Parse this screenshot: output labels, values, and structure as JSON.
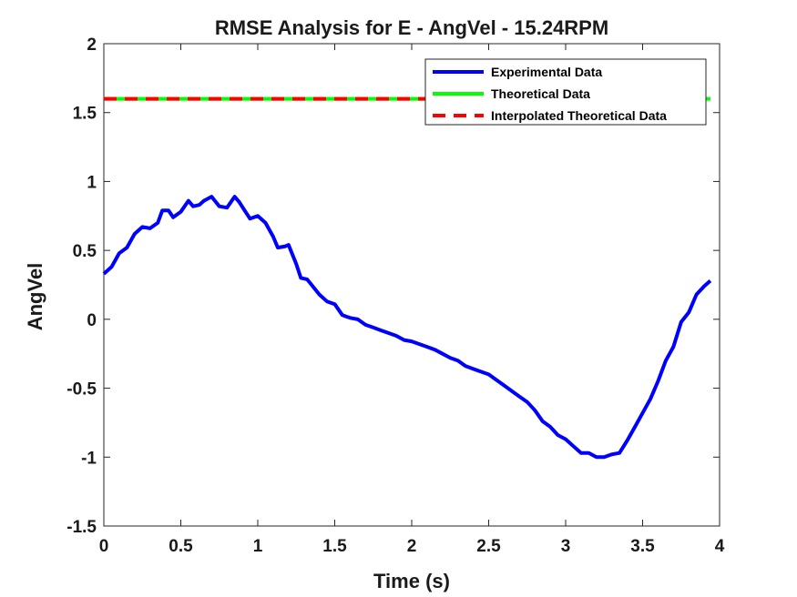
{
  "chart_data": {
    "type": "line",
    "title": "RMSE Analysis for E - AngVel - 15.24RPM",
    "xlabel": "Time (s)",
    "ylabel": "AngVel",
    "xlim": [
      0,
      4
    ],
    "ylim": [
      -1.5,
      2
    ],
    "xticks": [
      0,
      0.5,
      1,
      1.5,
      2,
      2.5,
      3,
      3.5,
      4
    ],
    "xtick_labels": [
      "0",
      "0.5",
      "1",
      "1.5",
      "2",
      "2.5",
      "3",
      "3.5",
      "4"
    ],
    "yticks": [
      -1.5,
      -1,
      -0.5,
      0,
      0.5,
      1,
      1.5,
      2
    ],
    "ytick_labels": [
      "-1.5",
      "-1",
      "-0.5",
      "0",
      "0.5",
      "1",
      "1.5",
      "2"
    ],
    "grid": false,
    "legend_position": "top-right",
    "series": [
      {
        "name": "Experimental Data",
        "color": "#0000ff",
        "style": "solid",
        "x": [
          0,
          0.05,
          0.1,
          0.15,
          0.2,
          0.25,
          0.3,
          0.35,
          0.38,
          0.42,
          0.45,
          0.5,
          0.55,
          0.58,
          0.62,
          0.65,
          0.7,
          0.75,
          0.8,
          0.85,
          0.88,
          0.92,
          0.95,
          1.0,
          1.05,
          1.1,
          1.13,
          1.18,
          1.2,
          1.25,
          1.28,
          1.32,
          1.35,
          1.4,
          1.45,
          1.5,
          1.55,
          1.6,
          1.65,
          1.7,
          1.75,
          1.8,
          1.85,
          1.9,
          1.95,
          2.0,
          2.05,
          2.1,
          2.15,
          2.2,
          2.25,
          2.3,
          2.35,
          2.4,
          2.45,
          2.5,
          2.55,
          2.6,
          2.65,
          2.7,
          2.75,
          2.8,
          2.85,
          2.9,
          2.95,
          3.0,
          3.05,
          3.1,
          3.15,
          3.2,
          3.25,
          3.3,
          3.35,
          3.4,
          3.45,
          3.5,
          3.55,
          3.6,
          3.65,
          3.7,
          3.75,
          3.8,
          3.85,
          3.9,
          3.94
        ],
        "y": [
          0.33,
          0.38,
          0.48,
          0.52,
          0.62,
          0.67,
          0.66,
          0.7,
          0.79,
          0.79,
          0.74,
          0.78,
          0.86,
          0.82,
          0.83,
          0.86,
          0.89,
          0.82,
          0.81,
          0.89,
          0.85,
          0.78,
          0.73,
          0.75,
          0.7,
          0.6,
          0.52,
          0.53,
          0.54,
          0.4,
          0.3,
          0.29,
          0.25,
          0.18,
          0.13,
          0.11,
          0.03,
          0.01,
          0.0,
          -0.04,
          -0.06,
          -0.08,
          -0.1,
          -0.12,
          -0.15,
          -0.16,
          -0.18,
          -0.2,
          -0.22,
          -0.25,
          -0.28,
          -0.3,
          -0.34,
          -0.36,
          -0.38,
          -0.4,
          -0.44,
          -0.48,
          -0.52,
          -0.56,
          -0.6,
          -0.66,
          -0.74,
          -0.78,
          -0.84,
          -0.87,
          -0.92,
          -0.97,
          -0.97,
          -1.0,
          -1.0,
          -0.98,
          -0.97,
          -0.88,
          -0.78,
          -0.68,
          -0.58,
          -0.45,
          -0.3,
          -0.2,
          -0.02,
          0.05,
          0.18,
          0.24,
          0.28
        ]
      },
      {
        "name": "Theoretical Data",
        "color": "#00ff00",
        "style": "solid",
        "x": [
          0,
          3.94
        ],
        "y": [
          1.6,
          1.6
        ]
      },
      {
        "name": "Interpolated Theoretical Data",
        "color": "#ff0000",
        "style": "dashed",
        "x": [
          0,
          3.94
        ],
        "y": [
          1.6,
          1.6
        ]
      }
    ]
  }
}
